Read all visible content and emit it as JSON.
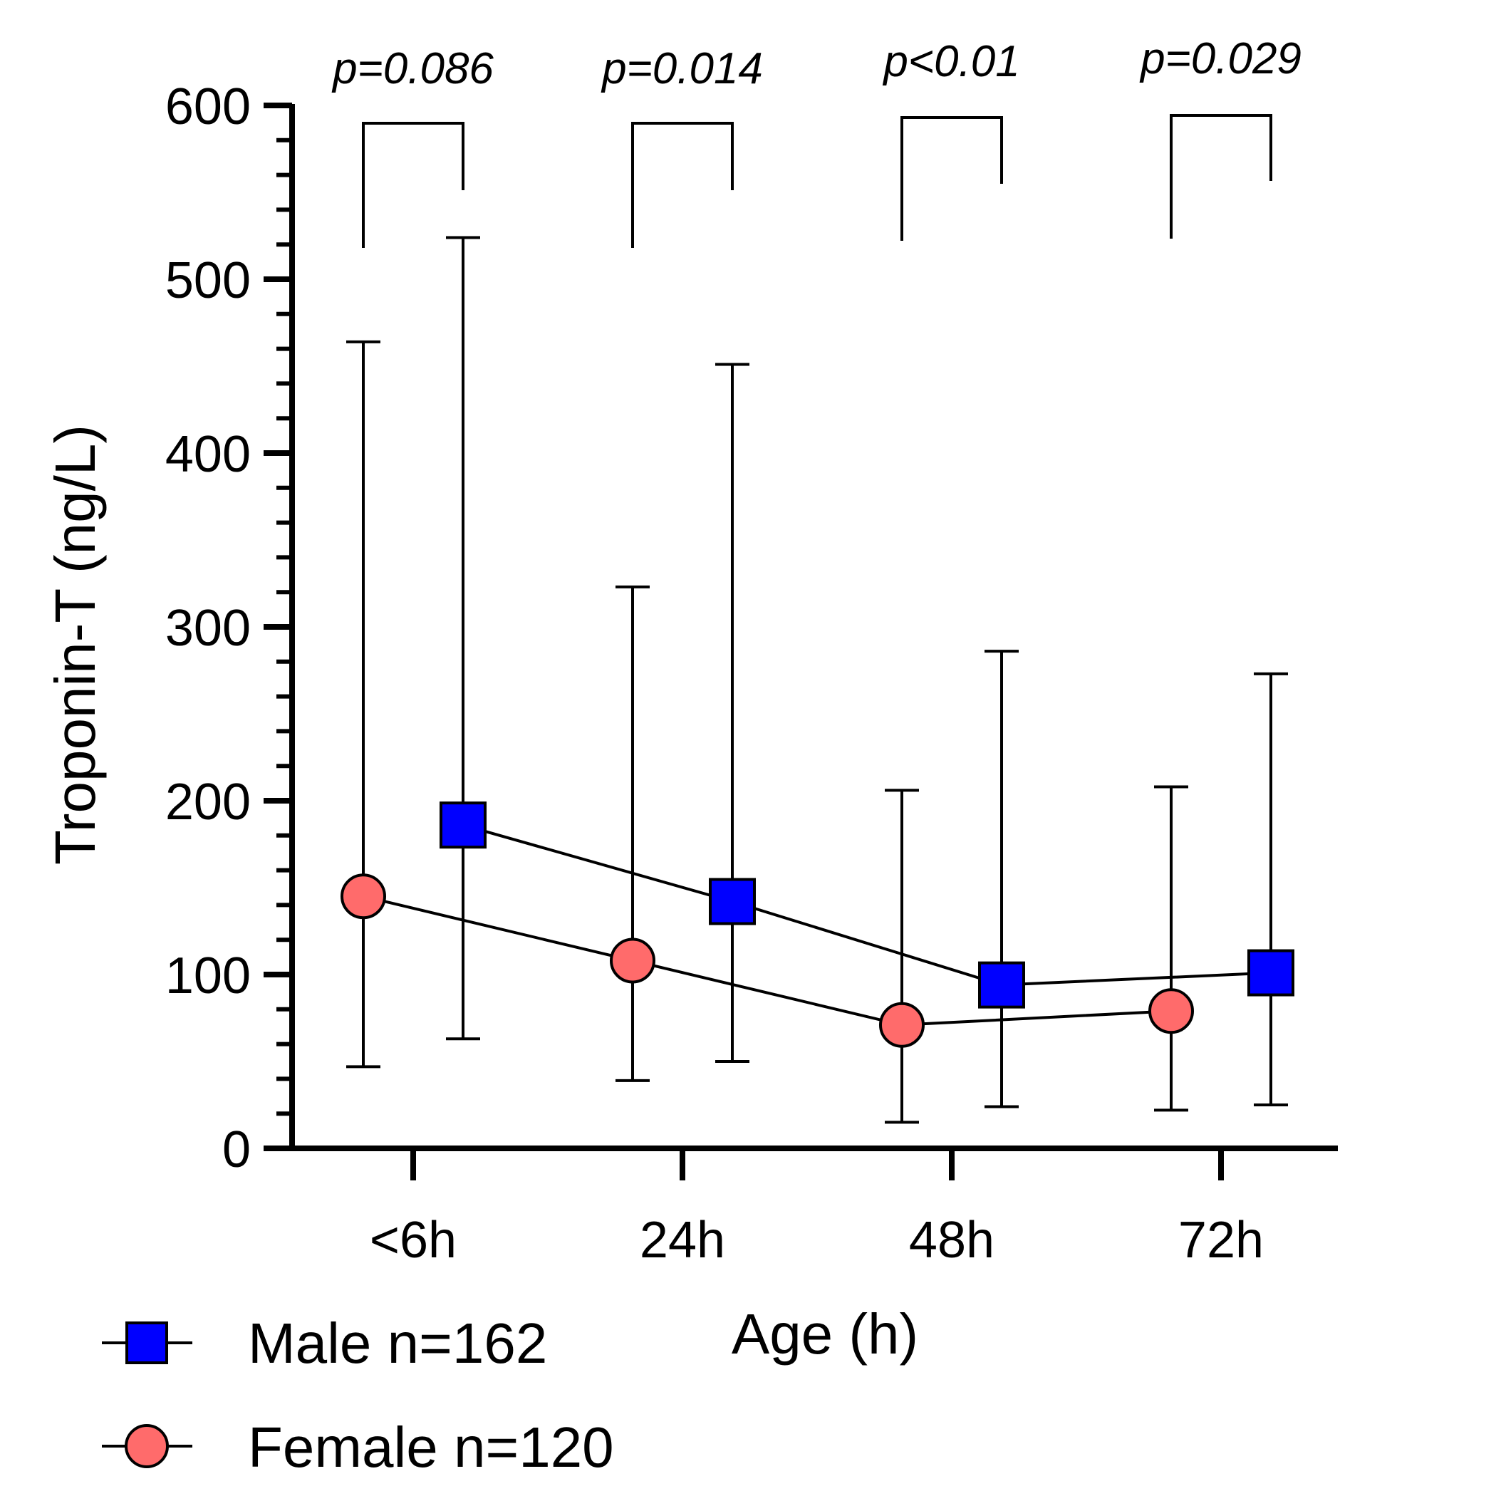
{
  "chart_data": {
    "type": "scatter",
    "xlabel": "Age (h)",
    "ylabel": "Troponin-T (ng/L)",
    "ylim": [
      0,
      600
    ],
    "yticks": [
      "0",
      "100",
      "200",
      "300",
      "400",
      "500",
      "600"
    ],
    "categories": [
      "<6h",
      "24h",
      "48h",
      "72h"
    ],
    "grid": false,
    "legend_position": "bottom-left",
    "series": [
      {
        "name": "Male n=162",
        "marker": "square",
        "color": "#0000ff",
        "values": [
          186,
          142,
          94,
          101
        ],
        "error_low": [
          63,
          50,
          24,
          25
        ],
        "error_high": [
          524,
          451,
          286,
          273
        ]
      },
      {
        "name": "Female n=120",
        "marker": "circle",
        "color": "#ff6b6b",
        "values": [
          145,
          108,
          71,
          79
        ],
        "error_low": [
          47,
          39,
          15,
          22
        ],
        "error_high": [
          464,
          323,
          206,
          208
        ]
      }
    ],
    "annotations": [
      "p=0.086",
      "p=0.014",
      "p<0.01",
      "p=0.029"
    ]
  }
}
